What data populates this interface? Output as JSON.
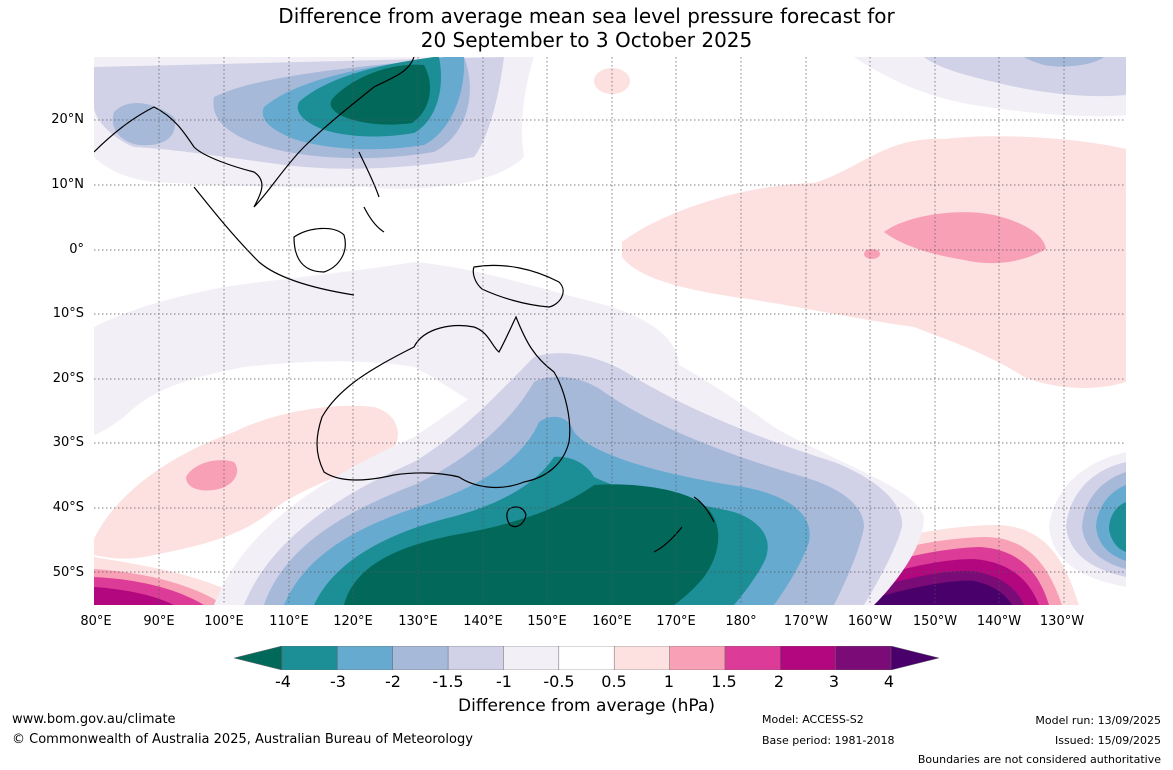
{
  "title": {
    "line1": "Difference from average mean sea level pressure forecast for",
    "line2": "20 September to 3 October 2025"
  },
  "map": {
    "lat_labels": [
      "20°N",
      "10°N",
      "0°",
      "10°S",
      "20°S",
      "30°S",
      "40°S",
      "50°S"
    ],
    "lon_labels": [
      "80°E",
      "90°E",
      "100°E",
      "110°E",
      "120°E",
      "130°E",
      "140°E",
      "150°E",
      "160°E",
      "170°E",
      "180°",
      "170°W",
      "160°W",
      "150°W",
      "140°W",
      "130°W"
    ],
    "grid": true,
    "extent": {
      "lon_min": "80°E",
      "lon_max": "120°W",
      "lat_min": "55°S",
      "lat_max": "30°N"
    }
  },
  "colorbar": {
    "title": "Difference from average (hPa)",
    "ticks": [
      "-4",
      "-3",
      "-2",
      "-1.5",
      "-1",
      "-0.5",
      "0.5",
      "1",
      "1.5",
      "2",
      "3",
      "4"
    ],
    "colors": [
      "#02695a",
      "#1c8e96",
      "#66aacf",
      "#a7b9d9",
      "#d1d2e7",
      "#f2eff6",
      "#ffffff",
      "#fde0e0",
      "#f8a1b6",
      "#dc3b97",
      "#b2077f",
      "#7a0b77",
      "#4a006a"
    ]
  },
  "footer": {
    "website": "www.bom.gov.au/climate",
    "copyright": "© Commonwealth of Australia 2025, Australian Bureau of Meteorology",
    "model": "Model: ACCESS-S2",
    "base_period": "Base period: 1981-2018",
    "model_run": "Model run: 13/09/2025",
    "issued": "Issued: 15/09/2025",
    "disclaimer": "Boundaries are not considered authoritative"
  }
}
